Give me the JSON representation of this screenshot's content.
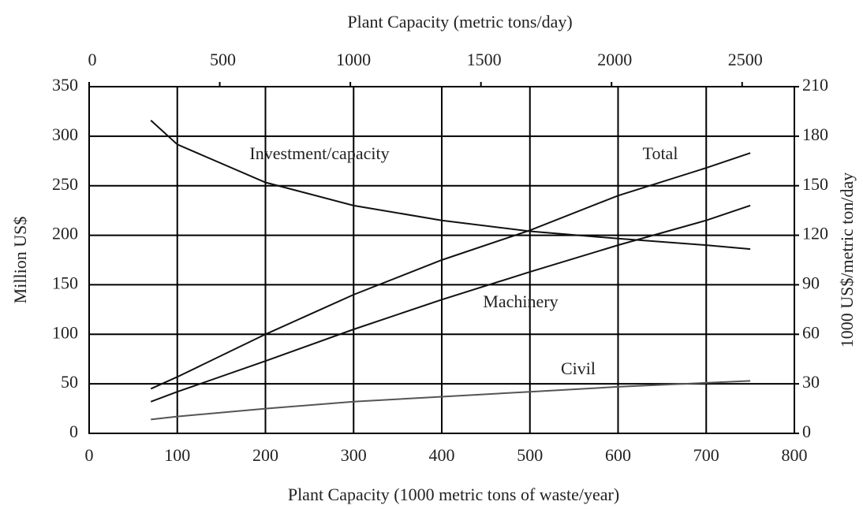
{
  "chart_data": {
    "type": "line",
    "title": "Plant Capacity (metric tons/day)",
    "xlabel": "Plant Capacity (1000 metric tons of waste/year)",
    "ylabel": "Million US$",
    "y2label": "1000 US$/metric ton/day",
    "x": [
      70,
      100,
      200,
      300,
      400,
      500,
      600,
      700,
      750
    ],
    "series": [
      {
        "name": "Total",
        "color": "#111111",
        "values": [
          45,
          57,
          100,
          140,
          175,
          205,
          240,
          268,
          283
        ]
      },
      {
        "name": "Machinery",
        "color": "#111111",
        "values": [
          32,
          42,
          73,
          105,
          135,
          163,
          190,
          215,
          230
        ]
      },
      {
        "name": "Civil",
        "color": "#555555",
        "values": [
          14,
          17,
          25,
          32,
          37,
          42,
          47,
          51,
          53
        ]
      },
      {
        "name": "Investment/capacity",
        "color": "#111111",
        "axis": "y2",
        "values": [
          189.6,
          175,
          152,
          138,
          129,
          122.4,
          118,
          114,
          111.6
        ]
      }
    ],
    "xlim": [
      0,
      800
    ],
    "xticks": [
      0,
      100,
      200,
      300,
      400,
      500,
      600,
      700,
      800
    ],
    "x2lim": [
      0,
      2700
    ],
    "x2ticks": [
      0,
      500,
      1000,
      1500,
      2000,
      2500
    ],
    "ylim": [
      0,
      350
    ],
    "yticks": [
      0,
      50,
      100,
      150,
      200,
      250,
      300,
      350
    ],
    "y2lim": [
      0,
      210
    ],
    "y2ticks": [
      0,
      30,
      60,
      90,
      120,
      150,
      180,
      210
    ],
    "grid": true
  }
}
